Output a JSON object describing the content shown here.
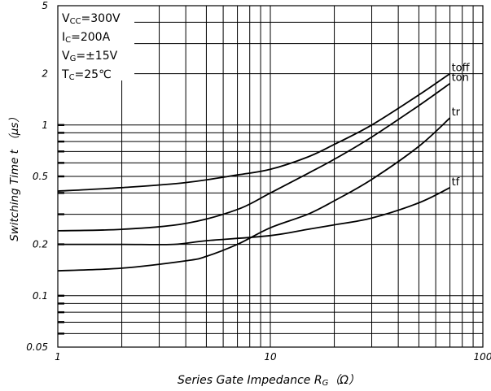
{
  "chart_data": {
    "type": "line",
    "xlabel": "Series Gate Impedance R",
    "xlabel_sub": "G",
    "xlabel_unit": "（Ω）",
    "ylabel": "Switching Time t （μs）",
    "x_scale": "log",
    "y_scale": "log",
    "xlim": [
      1,
      100
    ],
    "ylim": [
      0.05,
      5
    ],
    "x_ticks": [
      {
        "value": 1,
        "label": "1"
      },
      {
        "value": 10,
        "label": "10"
      },
      {
        "value": 100,
        "label": "100"
      }
    ],
    "y_ticks": [
      {
        "value": 0.05,
        "label": "0.05"
      },
      {
        "value": 0.1,
        "label": "0.1"
      },
      {
        "value": 0.2,
        "label": "0.2"
      },
      {
        "value": 0.5,
        "label": "0.5"
      },
      {
        "value": 1,
        "label": "1"
      },
      {
        "value": 2,
        "label": "2"
      },
      {
        "value": 5,
        "label": "5"
      }
    ],
    "grid": true,
    "conditions": [
      {
        "main": "V",
        "sub": "CC",
        "rest": "=300V"
      },
      {
        "main": "I",
        "sub": "C",
        "rest": "=200A"
      },
      {
        "main": "V",
        "sub": "G",
        "rest": "=±15V"
      },
      {
        "main": "T",
        "sub": "C",
        "rest": "=25℃"
      }
    ],
    "series": [
      {
        "name": "toff",
        "x": [
          1,
          2,
          4,
          7,
          10,
          15,
          20,
          30,
          50,
          70
        ],
        "y": [
          0.41,
          0.43,
          0.46,
          0.51,
          0.55,
          0.65,
          0.77,
          1.0,
          1.5,
          2.0
        ]
      },
      {
        "name": "ton",
        "x": [
          1,
          2,
          4,
          7,
          10,
          15,
          20,
          30,
          50,
          70
        ],
        "y": [
          0.24,
          0.245,
          0.265,
          0.32,
          0.4,
          0.52,
          0.63,
          0.85,
          1.3,
          1.75
        ]
      },
      {
        "name": "tr",
        "x": [
          1,
          2,
          4,
          5,
          7,
          10,
          15,
          20,
          30,
          50,
          70
        ],
        "y": [
          0.14,
          0.145,
          0.16,
          0.17,
          0.2,
          0.25,
          0.3,
          0.36,
          0.48,
          0.75,
          1.1
        ]
      },
      {
        "name": "tf",
        "x": [
          1,
          2,
          3.5,
          5,
          10,
          15,
          20,
          30,
          50,
          70
        ],
        "y": [
          0.2,
          0.2,
          0.2,
          0.21,
          0.225,
          0.245,
          0.26,
          0.285,
          0.35,
          0.43
        ]
      }
    ]
  }
}
